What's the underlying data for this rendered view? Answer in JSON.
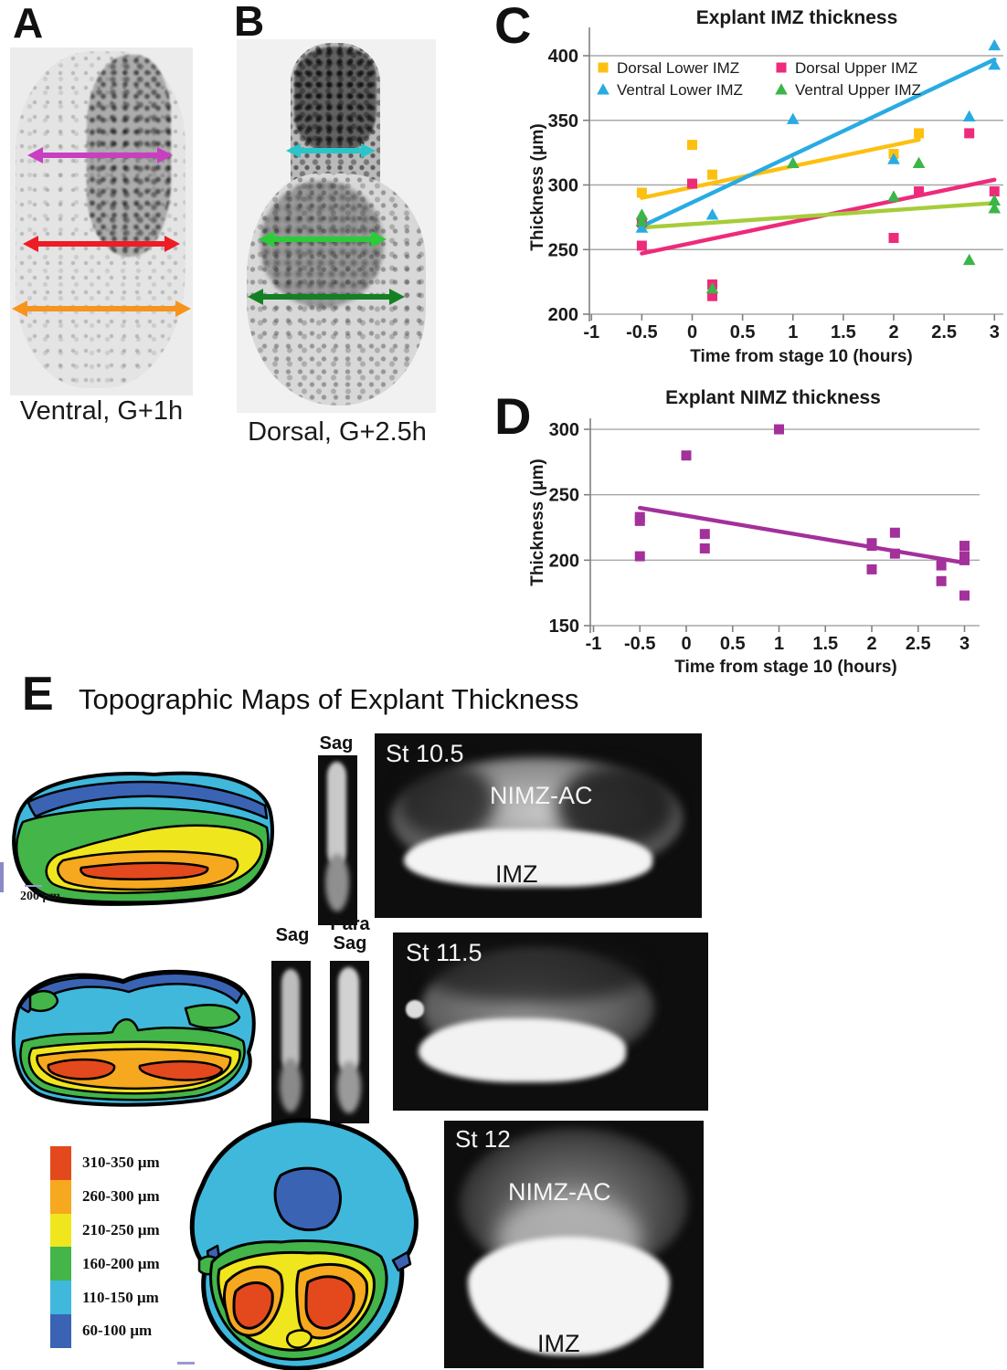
{
  "figure": {
    "panel_a": {
      "letter": "A",
      "caption": "Ventral, G+1h",
      "arrows": [
        {
          "name": "upper-width-arrow",
          "color": "#C93FC1"
        },
        {
          "name": "middle-width-arrow",
          "color": "#EE1C25"
        },
        {
          "name": "lower-width-arrow",
          "color": "#F7941D"
        }
      ]
    },
    "panel_b": {
      "letter": "B",
      "caption": "Dorsal, G+2.5h",
      "arrows": [
        {
          "name": "upper-width-arrow",
          "color": "#29C5C9"
        },
        {
          "name": "middle-width-arrow",
          "color": "#2BCB3A"
        },
        {
          "name": "lower-width-arrow",
          "color": "#157F24"
        }
      ]
    },
    "panel_c": {
      "letter": "C"
    },
    "panel_d": {
      "letter": "D"
    },
    "panel_e": {
      "letter": "E",
      "title": "Topographic Maps of Explant Thickness",
      "scale_label": "200 μm",
      "labels": {
        "sag": "Sag",
        "para_line1": "Para",
        "para_line2": "Sag"
      },
      "stages": [
        {
          "label": "St 10.5",
          "region_labels": [
            "NIMZ-AC",
            "IMZ"
          ]
        },
        {
          "label": "St 11.5",
          "region_labels": []
        },
        {
          "label": "St 12",
          "region_labels": [
            "NIMZ-AC",
            "IMZ"
          ]
        }
      ],
      "legend": [
        {
          "label": "310-350 μm",
          "color": "#E3491D"
        },
        {
          "label": "260-300 μm",
          "color": "#F6A81F"
        },
        {
          "label": "210-250 μm",
          "color": "#EFE61E"
        },
        {
          "label": "160-200 μm",
          "color": "#43B549"
        },
        {
          "label": "110-150 μm",
          "color": "#3FB8DC"
        },
        {
          "label": "60-100 μm",
          "color": "#3A63B4"
        }
      ]
    }
  },
  "chart_data": [
    {
      "id": "imz",
      "type": "scatter",
      "title": "Explant IMZ thickness",
      "xlabel": "Time from stage 10 (hours)",
      "ylabel": "Thickness (μm)",
      "xlim": [
        -1,
        3.5
      ],
      "ylim": [
        200,
        412
      ],
      "xticks": [
        -1,
        -0.5,
        0,
        0.5,
        1,
        1.5,
        2,
        2.5,
        3
      ],
      "yticks": [
        200,
        250,
        300,
        350,
        400
      ],
      "grid": "horizontal",
      "legend_position": "top-left",
      "legend_columns": [
        [
          "Dorsal Lower IMZ",
          "Ventral Lower IMZ"
        ],
        [
          "Dorsal Upper IMZ",
          "Ventral Upper IMZ"
        ]
      ],
      "series": [
        {
          "name": "Dorsal Lower IMZ",
          "marker": "square",
          "color": "#FDC010",
          "points": [
            [
              -0.5,
              294
            ],
            [
              0,
              331
            ],
            [
              0.2,
              308
            ],
            [
              2,
              324
            ],
            [
              2.25,
              340
            ]
          ],
          "trend": [
            [
              -0.5,
              290
            ],
            [
              2.25,
              335
            ]
          ],
          "trend_color": "#FDC010"
        },
        {
          "name": "Dorsal Upper IMZ",
          "marker": "square",
          "color": "#EE2A7B",
          "points": [
            [
              -0.5,
              271
            ],
            [
              -0.5,
              253
            ],
            [
              0,
              301
            ],
            [
              0.2,
              223
            ],
            [
              0.2,
              214
            ],
            [
              2,
              259
            ],
            [
              2.25,
              295
            ],
            [
              2.75,
              340
            ],
            [
              3,
              295
            ]
          ],
          "trend": [
            [
              -0.5,
              247
            ],
            [
              3,
              304
            ]
          ],
          "trend_color": "#EE2A7B"
        },
        {
          "name": "Ventral Lower IMZ",
          "marker": "triangle",
          "color": "#29ABE2",
          "points": [
            [
              -0.5,
              267
            ],
            [
              0.2,
              277
            ],
            [
              1,
              351
            ],
            [
              2,
              320
            ],
            [
              2.75,
              353
            ],
            [
              3,
              408
            ],
            [
              3,
              393
            ]
          ],
          "trend": [
            [
              -0.5,
              268
            ],
            [
              3,
              397
            ]
          ],
          "trend_color": "#29ABE2"
        },
        {
          "name": "Ventral Upper IMZ",
          "marker": "triangle",
          "color": "#3CB549",
          "points": [
            [
              -0.5,
              277
            ],
            [
              -0.5,
              272
            ],
            [
              0.2,
              220
            ],
            [
              1,
              317
            ],
            [
              2,
              291
            ],
            [
              2.25,
              317
            ],
            [
              2.75,
              242
            ],
            [
              3,
              288
            ],
            [
              3,
              282
            ]
          ],
          "trend": [
            [
              -0.5,
              267
            ],
            [
              3,
              286
            ]
          ],
          "trend_color": "#A5CD39"
        }
      ]
    },
    {
      "id": "nimz",
      "type": "scatter",
      "title": "Explant NIMZ thickness",
      "xlabel": "Time from stage 10 (hours)",
      "ylabel": "Thickness (μm)",
      "xlim": [
        -1,
        3.2
      ],
      "ylim": [
        150,
        312
      ],
      "xticks": [
        -1,
        -0.5,
        0,
        0.5,
        1,
        1.5,
        2,
        2.5,
        3
      ],
      "yticks": [
        150,
        200,
        250,
        300
      ],
      "grid": "horizontal",
      "legend_position": "none",
      "series": [
        {
          "name": "NIMZ",
          "marker": "square",
          "color": "#A3309B",
          "points": [
            [
              -0.5,
              233
            ],
            [
              -0.5,
              230
            ],
            [
              -0.5,
              203
            ],
            [
              0,
              280
            ],
            [
              0.2,
              220
            ],
            [
              0.2,
              209
            ],
            [
              1,
              300
            ],
            [
              2,
              213
            ],
            [
              2,
              211
            ],
            [
              2,
              193
            ],
            [
              2.25,
              221
            ],
            [
              2.25,
              205
            ],
            [
              2.75,
              196
            ],
            [
              2.75,
              184
            ],
            [
              3,
              211
            ],
            [
              3,
              203
            ],
            [
              3,
              200
            ],
            [
              3,
              173
            ]
          ],
          "trend": [
            [
              -0.5,
              240
            ],
            [
              3,
              198
            ]
          ],
          "trend_color": "#A3309B"
        }
      ]
    }
  ]
}
